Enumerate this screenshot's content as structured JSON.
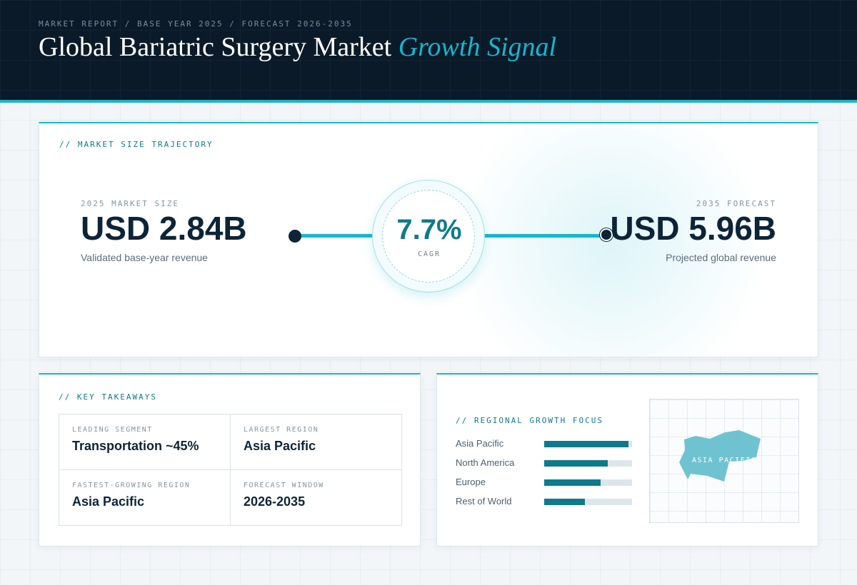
{
  "header": {
    "eyebrow": "MARKET REPORT / BASE YEAR 2025 / FORECAST 2026-2035",
    "title_main": "Global Bariatric Surgery Market",
    "title_accent": "Growth Signal"
  },
  "trajectory": {
    "section_label": "// MARKET SIZE TRAJECTORY",
    "start": {
      "label": "2025 MARKET SIZE",
      "value": "USD 2.84B",
      "sub": "Validated base-year revenue"
    },
    "cagr": {
      "value": "7.7%",
      "label": "CAGR"
    },
    "end": {
      "label": "2035 FORECAST",
      "value": "USD 5.96B",
      "sub": "Projected global revenue"
    }
  },
  "takeaways": {
    "section_label": "// KEY TAKEAWAYS",
    "items": [
      {
        "label": "LEADING SEGMENT",
        "value": "Transportation ~45%"
      },
      {
        "label": "LARGEST REGION",
        "value": "Asia Pacific"
      },
      {
        "label": "FASTEST-GROWING REGION",
        "value": "Asia Pacific"
      },
      {
        "label": "FORECAST WINDOW",
        "value": "2026-2035"
      }
    ]
  },
  "regional": {
    "section_label": "// REGIONAL GROWTH FOCUS",
    "regions": [
      {
        "name": "Asia Pacific",
        "share": 0.96
      },
      {
        "name": "North America",
        "share": 0.72
      },
      {
        "name": "Europe",
        "share": 0.64
      },
      {
        "name": "Rest of World",
        "share": 0.46
      }
    ],
    "map_label": "ASIA PACIFIC"
  },
  "colors": {
    "accent": "#16b6cf",
    "teal_dark": "#0f7a8c",
    "navy": "#0d2438",
    "map_fill": "#6fc3d1"
  }
}
